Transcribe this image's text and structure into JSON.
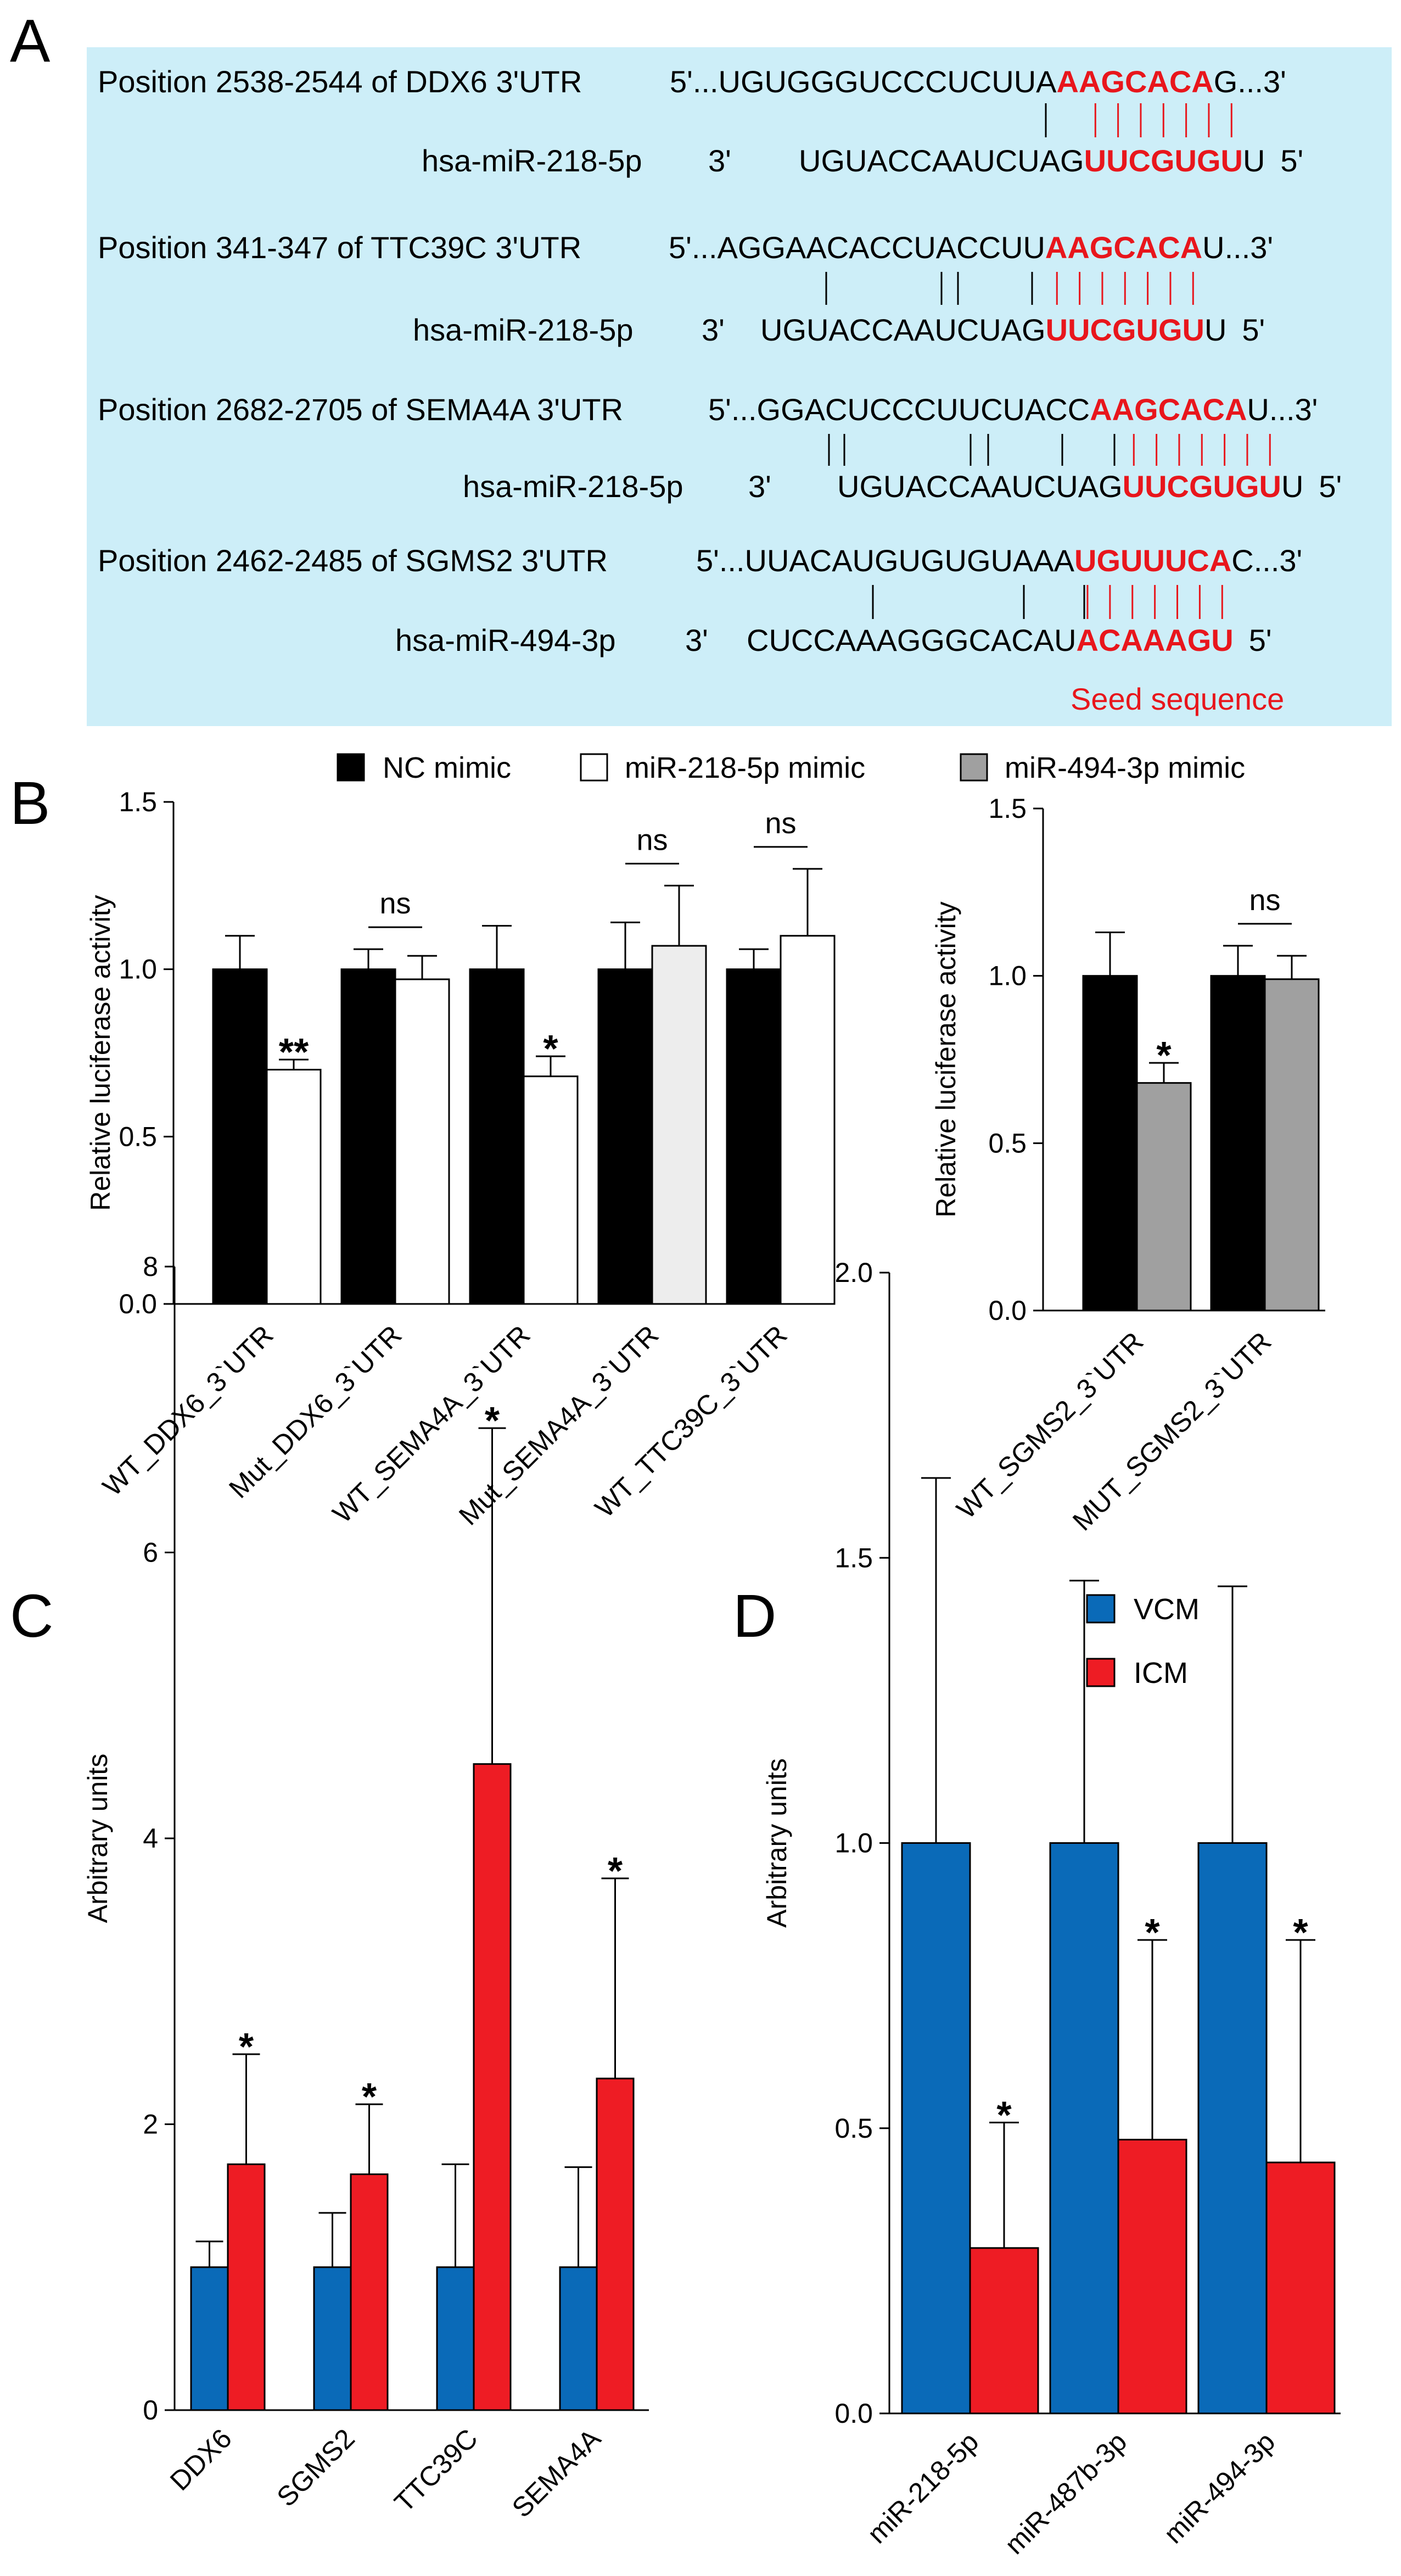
{
  "panelA": {
    "label": "A",
    "rows": [
      {
        "title": "Position 2538-2544 of DDX6 3'UTR",
        "utr_prefix": "5'...UGUGGGUCCCUCUUA",
        "utr_seed": "AAGCACA",
        "utr_suffix": "G...3'",
        "mirna": "hsa-miR-218-5p",
        "mir_end3": "3'",
        "mir_prefix": "UGUACCAAUCUAG",
        "mir_seed": "UUCGUGU",
        "mir_suffix": "U",
        "mir_end5": "5'"
      },
      {
        "title": "Position 341-347 of TTC39C 3'UTR",
        "utr_prefix": "5'...AGGAACACCUACCUU",
        "utr_seed": "AAGCACA",
        "utr_suffix": "U...3'",
        "mirna": "hsa-miR-218-5p",
        "mir_end3": "3'",
        "mir_prefix": "UGUACCAAUCUAG",
        "mir_seed": "UUCGUGU",
        "mir_suffix": "U",
        "mir_end5": "5'"
      },
      {
        "title": "Position 2682-2705 of SEMA4A 3'UTR",
        "utr_prefix": "5'...GGACUCCCUUCUACC",
        "utr_seed": "AAGCACA",
        "utr_suffix": "U...3'",
        "mirna": "hsa-miR-218-5p",
        "mir_end3": "3'",
        "mir_prefix": "UGUACCAAUCUAG",
        "mir_seed": "UUCGUGU",
        "mir_suffix": "U",
        "mir_end5": "5'"
      },
      {
        "title": "Position 2462-2485 of SGMS2 3'UTR",
        "utr_prefix": "5'...UUACAUGUGUGUAAA",
        "utr_seed": "UGUUUCA",
        "utr_suffix": "C...3'",
        "mirna": "hsa-miR-494-3p",
        "mir_end3": "3'",
        "mir_prefix": "CUCCAAAGGGCACAU",
        "mir_seed": "ACAAAGU",
        "mir_suffix": "",
        "mir_end5": "5'"
      }
    ],
    "seed_label": "Seed sequence",
    "colors": {
      "background": "#cdeef8",
      "seed": "#e8161c"
    }
  },
  "panelB": {
    "label": "B",
    "legend": [
      {
        "label": "NC mimic",
        "color": "#000000"
      },
      {
        "label": "miR-218-5p mimic",
        "color": "#ffffff"
      },
      {
        "label": "miR-494-3p mimic",
        "color": "#a0a0a0"
      }
    ]
  },
  "panelC": {
    "label": "C"
  },
  "panelD": {
    "label": "D"
  },
  "chart_data": [
    {
      "id": "B-left",
      "type": "bar",
      "ylabel": "Relative luciferase activity",
      "ylim": [
        0,
        1.5
      ],
      "yticks": [
        "0.0",
        "0.5",
        "1.0",
        "1.5"
      ],
      "groups": [
        {
          "label": "WT_DDX6_3`UTR",
          "bars": [
            {
              "series": "NC mimic",
              "value": 1.0,
              "error": 0.1,
              "color": "#000000"
            },
            {
              "series": "miR-218-5p mimic",
              "value": 0.7,
              "error": 0.03,
              "color": "#ffffff"
            }
          ],
          "sig": "**"
        },
        {
          "label": "Mut_DDX6_3`UTR",
          "bars": [
            {
              "series": "NC mimic",
              "value": 1.0,
              "error": 0.06,
              "color": "#000000"
            },
            {
              "series": "miR-218-5p mimic",
              "value": 0.97,
              "error": 0.07,
              "color": "#ffffff"
            }
          ],
          "sig": "ns"
        },
        {
          "label": "WT_SEMA4A_3`UTR",
          "bars": [
            {
              "series": "NC mimic",
              "value": 1.0,
              "error": 0.13,
              "color": "#000000"
            },
            {
              "series": "miR-218-5p mimic",
              "value": 0.68,
              "error": 0.06,
              "color": "#ffffff"
            }
          ],
          "sig": "*"
        },
        {
          "label": "Mut_SEMA4A_3`UTR",
          "bars": [
            {
              "series": "NC mimic",
              "value": 1.0,
              "error": 0.14,
              "color": "#000000"
            },
            {
              "series": "miR-218-5p mimic",
              "value": 1.07,
              "error": 0.18,
              "color": "#ededed"
            }
          ],
          "sig": "ns"
        },
        {
          "label": "WT_TTC39C_3`UTR",
          "bars": [
            {
              "series": "NC mimic",
              "value": 1.0,
              "error": 0.06,
              "color": "#000000"
            },
            {
              "series": "miR-218-5p mimic",
              "value": 1.1,
              "error": 0.2,
              "color": "#ffffff"
            }
          ],
          "sig": "ns"
        }
      ]
    },
    {
      "id": "B-right",
      "type": "bar",
      "ylabel": "Relative luciferase activity",
      "ylim": [
        0,
        1.5
      ],
      "yticks": [
        "0.0",
        "0.5",
        "1.0",
        "1.5"
      ],
      "groups": [
        {
          "label": "WT_SGMS2_3`UTR",
          "bars": [
            {
              "series": "NC mimic",
              "value": 1.0,
              "error": 0.13,
              "color": "#000000"
            },
            {
              "series": "miR-494-3p mimic",
              "value": 0.68,
              "error": 0.06,
              "color": "#a0a0a0"
            }
          ],
          "sig": "*"
        },
        {
          "label": "MUT_SGMS2_3`UTR",
          "bars": [
            {
              "series": "NC mimic",
              "value": 1.0,
              "error": 0.09,
              "color": "#000000"
            },
            {
              "series": "miR-494-3p mimic",
              "value": 0.99,
              "error": 0.07,
              "color": "#a0a0a0"
            }
          ],
          "sig": "ns"
        }
      ]
    },
    {
      "id": "C",
      "type": "bar",
      "ylabel": "Arbitrary units",
      "ylim": [
        0,
        8
      ],
      "yticks": [
        "0",
        "2",
        "4",
        "6",
        "8"
      ],
      "groups": [
        {
          "label": "DDX6",
          "bars": [
            {
              "series": "VCM",
              "value": 1.0,
              "error": 0.18,
              "color": "#0a6ab8"
            },
            {
              "series": "ICM",
              "value": 1.72,
              "error": 0.77,
              "color": "#ee1c24"
            }
          ],
          "sig": "*"
        },
        {
          "label": "SGMS2",
          "bars": [
            {
              "series": "VCM",
              "value": 1.0,
              "error": 0.38,
              "color": "#0a6ab8"
            },
            {
              "series": "ICM",
              "value": 1.65,
              "error": 0.49,
              "color": "#ee1c24"
            }
          ],
          "sig": "*"
        },
        {
          "label": "TTC39C",
          "bars": [
            {
              "series": "VCM",
              "value": 1.0,
              "error": 0.72,
              "color": "#0a6ab8"
            },
            {
              "series": "ICM",
              "value": 4.52,
              "error": 2.35,
              "color": "#ee1c24"
            }
          ],
          "sig": "*"
        },
        {
          "label": "SEMA4A",
          "bars": [
            {
              "series": "VCM",
              "value": 1.0,
              "error": 0.7,
              "color": "#0a6ab8"
            },
            {
              "series": "ICM",
              "value": 2.32,
              "error": 1.4,
              "color": "#ee1c24"
            }
          ],
          "sig": "*"
        }
      ]
    },
    {
      "id": "D",
      "type": "bar",
      "ylabel": "Arbitrary units",
      "ylim": [
        0,
        2.0
      ],
      "yticks": [
        "0.0",
        "0.5",
        "1.0",
        "1.5",
        "2.0"
      ],
      "legend": [
        {
          "label": "VCM",
          "color": "#0a6ab8"
        },
        {
          "label": "ICM",
          "color": "#ee1c24"
        }
      ],
      "groups": [
        {
          "label": "miR-218-5p",
          "bars": [
            {
              "series": "VCM",
              "value": 1.0,
              "error": 0.64,
              "color": "#0a6ab8"
            },
            {
              "series": "ICM",
              "value": 0.29,
              "error": 0.22,
              "color": "#ee1c24"
            }
          ],
          "sig": "*"
        },
        {
          "label": "miR-487b-3p",
          "bars": [
            {
              "series": "VCM",
              "value": 1.0,
              "error": 0.46,
              "color": "#0a6ab8"
            },
            {
              "series": "ICM",
              "value": 0.48,
              "error": 0.35,
              "color": "#ee1c24"
            }
          ],
          "sig": "*"
        },
        {
          "label": "miR-494-3p",
          "bars": [
            {
              "series": "VCM",
              "value": 1.0,
              "error": 0.45,
              "color": "#0a6ab8"
            },
            {
              "series": "ICM",
              "value": 0.44,
              "error": 0.39,
              "color": "#ee1c24"
            }
          ],
          "sig": "*"
        }
      ]
    }
  ]
}
